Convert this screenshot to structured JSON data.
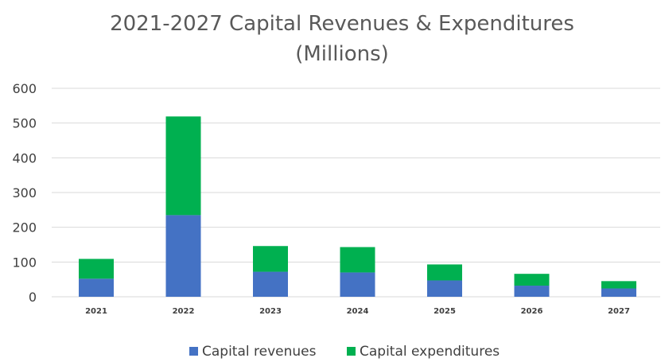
{
  "chart_data": {
    "type": "bar",
    "stacked": true,
    "title": "2021-2027 Capital Revenues & Expenditures",
    "subtitle": "(Millions)",
    "xlabel": "",
    "ylabel": "",
    "ylim": [
      0,
      600
    ],
    "yticks": [
      "0",
      "100",
      "200",
      "300",
      "400",
      "500",
      "600"
    ],
    "grid": true,
    "legend_position": "bottom",
    "categories": [
      "2021",
      "2022",
      "2023",
      "2024",
      "2025",
      "2026",
      "2027"
    ],
    "series": [
      {
        "name": "Capital revenues",
        "color": "#4472c4",
        "values": [
          52,
          235,
          72,
          70,
          47,
          32,
          24
        ]
      },
      {
        "name": "Capital expenditures",
        "color": "#00b050",
        "values": [
          57,
          284,
          74,
          73,
          46,
          34,
          21
        ]
      }
    ]
  }
}
